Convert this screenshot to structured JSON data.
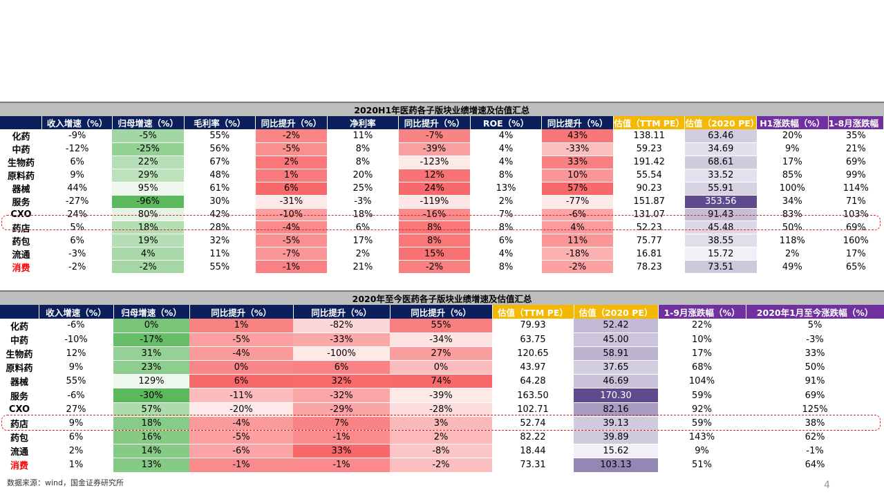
{
  "table1": {
    "title": "2020H1年医药各子版块业绩增速及估值汇总",
    "headers": [
      "",
      "收入增速（%）",
      "归母增速（%）",
      "毛利率（%）",
      "同比提升（%）",
      "净利率",
      "同比提升（%）",
      "ROE（%）",
      "同比提升（%）",
      "估值（TTM PE）",
      "估值（2020 PE）",
      "H1涨跌幅（%）",
      "1-8月涨跌幅（%）"
    ],
    "rows": [
      {
        "name": "化药",
        "cells": [
          "-9%",
          "-5%",
          "55%",
          "-2%",
          "11%",
          "-7%",
          "4%",
          "43%",
          "138.11",
          "63.46",
          "20%",
          "35%"
        ]
      },
      {
        "name": "中药",
        "cells": [
          "-12%",
          "-25%",
          "56%",
          "-5%",
          "8%",
          "-39%",
          "4%",
          "-33%",
          "59.23",
          "34.69",
          "9%",
          "21%"
        ]
      },
      {
        "name": "生物药",
        "cells": [
          "6%",
          "22%",
          "67%",
          "2%",
          "8%",
          "-123%",
          "4%",
          "33%",
          "191.42",
          "68.61",
          "17%",
          "69%"
        ]
      },
      {
        "name": "原料药",
        "cells": [
          "9%",
          "29%",
          "48%",
          "1%",
          "20%",
          "12%",
          "8%",
          "10%",
          "55.54",
          "33.52",
          "85%",
          "99%"
        ]
      },
      {
        "name": "器械",
        "cells": [
          "44%",
          "95%",
          "61%",
          "6%",
          "25%",
          "24%",
          "13%",
          "57%",
          "90.23",
          "55.91",
          "100%",
          "114%"
        ]
      },
      {
        "name": "服务",
        "cells": [
          "-27%",
          "-96%",
          "30%",
          "-31%",
          "-3%",
          "-119%",
          "2%",
          "-77%",
          "151.87",
          "353.56",
          "34%",
          "71%"
        ]
      },
      {
        "name": "CXO",
        "cells": [
          "24%",
          "80%",
          "42%",
          "-10%",
          "18%",
          "-16%",
          "7%",
          "-6%",
          "131.07",
          "91.43",
          "83%",
          "103%"
        ]
      },
      {
        "name": "药店",
        "cells": [
          "5%",
          "18%",
          "28%",
          "-4%",
          "6%",
          "8%",
          "8%",
          "4%",
          "52.23",
          "45.48",
          "50%",
          "69%"
        ]
      },
      {
        "name": "药包",
        "cells": [
          "6%",
          "19%",
          "32%",
          "-5%",
          "17%",
          "8%",
          "6%",
          "11%",
          "75.77",
          "38.55",
          "118%",
          "160%"
        ]
      },
      {
        "name": "流通",
        "cells": [
          "-3%",
          "4%",
          "11%",
          "-7%",
          "2%",
          "15%",
          "4%",
          "-18%",
          "16.81",
          "15.72",
          "2%",
          "17%"
        ]
      },
      {
        "name": "消费",
        "cells": [
          "-2%",
          "-2%",
          "55%",
          "-1%",
          "21%",
          "-2%",
          "8%",
          "-2%",
          "78.23",
          "73.51",
          "49%",
          "65%"
        ]
      }
    ]
  },
  "table2": {
    "title": "2020年至今医药各子版块业绩增速及估值汇总",
    "headers": [
      "",
      "收入增速（%）",
      "归母增速（%）",
      "同比提升（%）",
      "同比提升（%）",
      "同比提升（%）",
      "估值（TTM PE）",
      "估值（2020 PE）",
      "1-9月涨跌幅（%）",
      "2020年1月至今涨跌幅（%）"
    ],
    "rows": [
      {
        "name": "化药",
        "cells": [
          "-6%",
          "0%",
          "1%",
          "-82%",
          "55%",
          "79.93",
          "52.42",
          "22%",
          "5%"
        ]
      },
      {
        "name": "中药",
        "cells": [
          "-10%",
          "-17%",
          "-5%",
          "-33%",
          "-34%",
          "63.75",
          "45.00",
          "10%",
          "-3%"
        ]
      },
      {
        "name": "生物药",
        "cells": [
          "12%",
          "31%",
          "-4%",
          "-100%",
          "27%",
          "120.65",
          "58.91",
          "17%",
          "33%"
        ]
      },
      {
        "name": "原料药",
        "cells": [
          "9%",
          "23%",
          "0%",
          "6%",
          "0%",
          "43.97",
          "37.65",
          "68%",
          "50%"
        ]
      },
      {
        "name": "器械",
        "cells": [
          "55%",
          "129%",
          "6%",
          "32%",
          "74%",
          "64.28",
          "46.69",
          "104%",
          "91%"
        ]
      },
      {
        "name": "服务",
        "cells": [
          "-6%",
          "-30%",
          "-11%",
          "-32%",
          "-39%",
          "163.50",
          "170.30",
          "59%",
          "69%"
        ]
      },
      {
        "name": "CXO",
        "cells": [
          "27%",
          "57%",
          "-20%",
          "-29%",
          "-28%",
          "102.71",
          "82.16",
          "92%",
          "125%"
        ]
      },
      {
        "name": "药店",
        "cells": [
          "9%",
          "18%",
          "-4%",
          "7%",
          "3%",
          "52.74",
          "39.13",
          "59%",
          "38%"
        ]
      },
      {
        "name": "药包",
        "cells": [
          "6%",
          "16%",
          "-5%",
          "-1%",
          "2%",
          "82.22",
          "39.89",
          "143%",
          "62%"
        ]
      },
      {
        "name": "流通",
        "cells": [
          "2%",
          "14%",
          "-6%",
          "33%",
          "-8%",
          "18.44",
          "15.62",
          "9%",
          "-1%"
        ]
      },
      {
        "name": "消费",
        "cells": [
          "1%",
          "13%",
          "-1%",
          "-1%",
          "-2%",
          "73.31",
          "103.13",
          "51%",
          "64%"
        ]
      }
    ]
  },
  "colors": {
    "header_navy": "#0a1f5c",
    "header_yellow": "#f5b800",
    "header_purple": "#7030a0",
    "green_scale": "#5cb85c",
    "red_scale": "#f8696b",
    "purple_scale": "#5e4a8c",
    "highlight_red_text": "#ff0000",
    "dashed_box": "#e02020"
  },
  "source_note": "数据来源：wind，国金证券研究所",
  "page_number": "4"
}
